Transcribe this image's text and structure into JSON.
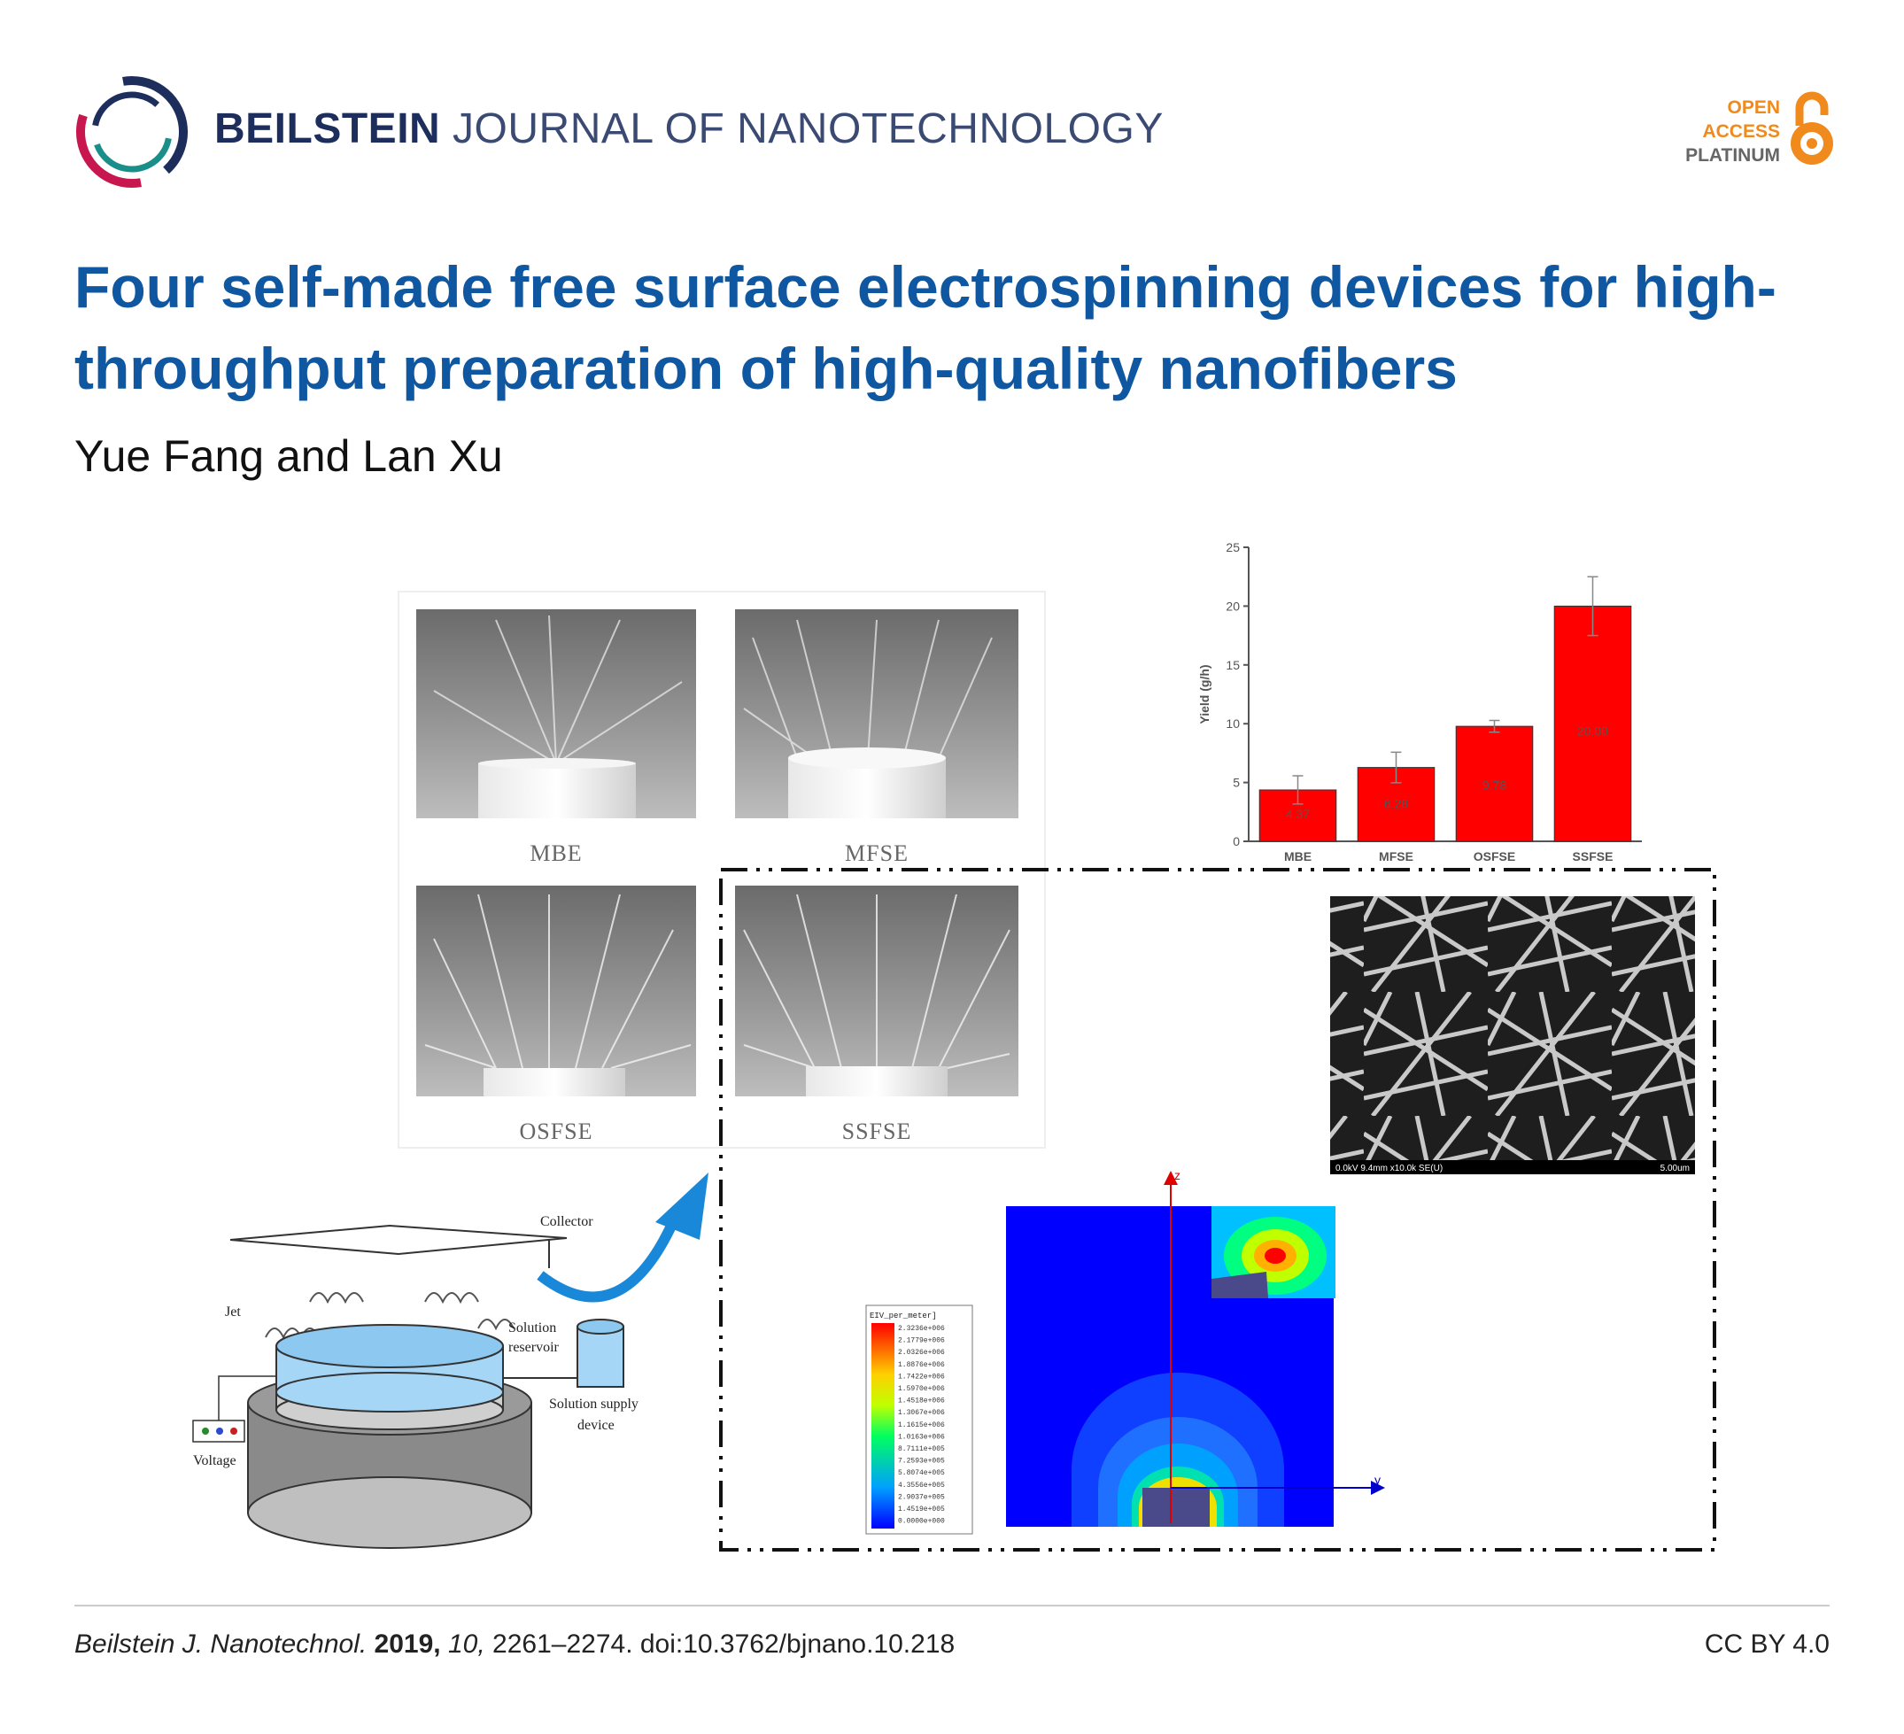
{
  "header": {
    "journal_name_bold": "BEILSTEIN",
    "journal_name_rest": "JOURNAL OF NANOTECHNOLOGY",
    "open_access": [
      "OPEN",
      "ACCESS",
      "PLATINUM"
    ],
    "icons": [
      "beilstein-logo-icon",
      "open-access-lock-icon"
    ],
    "colors": {
      "title": "#0f57a0",
      "journal": "#1d2e5c",
      "open_access": "#f08a1c",
      "platinum": "#666666"
    }
  },
  "article": {
    "title": "Four self-made free surface electrospinning devices for high-throughput preparation of high-quality nanofibers",
    "authors": "Yue Fang and Lan Xu"
  },
  "figure": {
    "photo_labels": [
      "MBE",
      "MFSE",
      "OSFSE",
      "SSFSE"
    ],
    "schematic_labels": {
      "collector": "Collector",
      "jet": "Jet",
      "solution_reservoir_1": "Solution",
      "solution_reservoir_2": "reservoir",
      "supply_1": "Solution supply",
      "supply_2": "device",
      "voltage": "Voltage"
    },
    "sem_caption_left": "0.0kV 9.4mm x10.0k SE(U)",
    "sem_caption_right": "5.00um",
    "field_legend_title": "EIV_per_meter]",
    "field_legend_values": [
      "2.3236e+006",
      "2.1779e+006",
      "2.0326e+006",
      "1.8876e+006",
      "1.7422e+006",
      "1.5970e+006",
      "1.4518e+006",
      "1.3067e+006",
      "1.1615e+006",
      "1.0163e+006",
      "8.7111e+005",
      "7.2593e+005",
      "5.8074e+005",
      "4.3556e+005",
      "2.9037e+005",
      "1.4519e+005",
      "0.0000e+000"
    ],
    "axis_labels": {
      "y": "y",
      "z": "z"
    }
  },
  "chart_data": {
    "type": "bar",
    "categories": [
      "MBE",
      "MFSE",
      "OSFSE",
      "SSFSE"
    ],
    "values": [
      4.37,
      6.28,
      9.78,
      20.0
    ],
    "data_labels": [
      "4.37",
      "6.28",
      "9.78",
      "20.00"
    ],
    "error": [
      1.2,
      1.3,
      0.5,
      2.5
    ],
    "ylabel": "Yield (g/h)",
    "ylim": [
      0,
      25
    ],
    "yticks": [
      "0",
      "5",
      "10",
      "15",
      "20",
      "25"
    ],
    "bar_color": "#ff0000",
    "grid": false
  },
  "footer": {
    "journal_abbrev": "Beilstein J. Nanotechnol.",
    "year": "2019,",
    "volume": "10,",
    "pages_doi": "2261–2274. doi:10.3762/bjnano.10.218",
    "license": "CC BY 4.0"
  }
}
